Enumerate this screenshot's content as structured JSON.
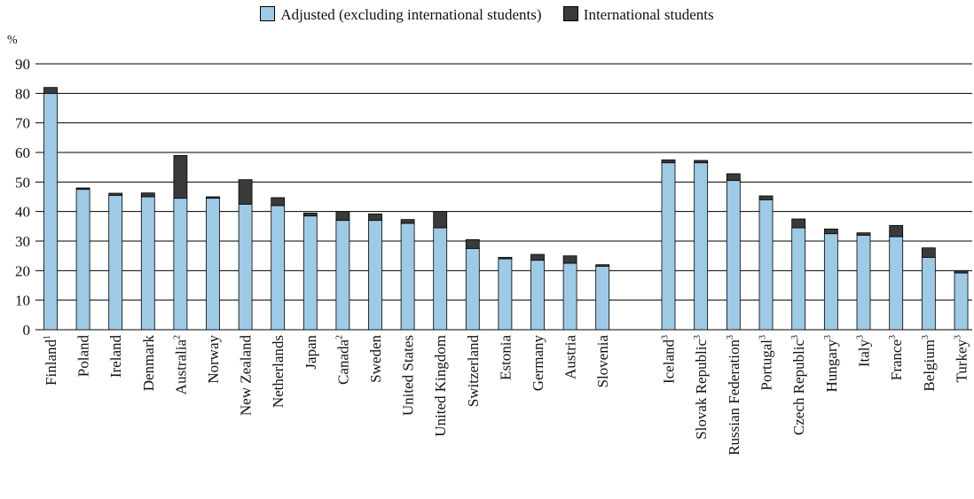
{
  "legend": {
    "adjusted": "Adjusted (excluding international students)",
    "international": "International students"
  },
  "colors": {
    "adjusted": "#9ecae6",
    "international": "#3a3a3a",
    "gridline": "#000000"
  },
  "chart_data": {
    "type": "bar",
    "stacked": true,
    "ylabel": "%",
    "ylim": [
      0,
      90
    ],
    "yticks": [
      0,
      10,
      20,
      30,
      40,
      50,
      60,
      70,
      80,
      90
    ],
    "grid": true,
    "legend_position": "top",
    "categories": [
      {
        "name": "Finland",
        "sup": "1"
      },
      {
        "name": "Poland",
        "sup": ""
      },
      {
        "name": "Ireland",
        "sup": ""
      },
      {
        "name": "Denmark",
        "sup": ""
      },
      {
        "name": "Australia",
        "sup": "2"
      },
      {
        "name": "Norway",
        "sup": ""
      },
      {
        "name": "New Zealand",
        "sup": ""
      },
      {
        "name": "Netherlands",
        "sup": ""
      },
      {
        "name": "Japan",
        "sup": ""
      },
      {
        "name": "Canada",
        "sup": "2"
      },
      {
        "name": "Sweden",
        "sup": ""
      },
      {
        "name": "United States",
        "sup": ""
      },
      {
        "name": "United Kingdom",
        "sup": ""
      },
      {
        "name": "Switzerland",
        "sup": ""
      },
      {
        "name": "Estonia",
        "sup": ""
      },
      {
        "name": "Germany",
        "sup": ""
      },
      {
        "name": "Austria",
        "sup": ""
      },
      {
        "name": "Slovenia",
        "sup": ""
      },
      {
        "name": "Iceland",
        "sup": "3"
      },
      {
        "name": "Slovak Republic",
        "sup": "3"
      },
      {
        "name": "Russian Federation",
        "sup": "3"
      },
      {
        "name": "Portugal",
        "sup": "3"
      },
      {
        "name": "Czech Republic",
        "sup": "3"
      },
      {
        "name": "Hungary",
        "sup": "3"
      },
      {
        "name": "Italy",
        "sup": "3"
      },
      {
        "name": "France",
        "sup": "3"
      },
      {
        "name": "Belgium",
        "sup": "3"
      },
      {
        "name": "Turkey",
        "sup": "3"
      }
    ],
    "series": [
      {
        "name": "Adjusted (excluding international students)",
        "values": [
          80,
          47.5,
          45.5,
          45,
          44.5,
          44.5,
          42.5,
          42,
          38.5,
          37,
          37,
          36,
          34.5,
          27.5,
          24,
          23.5,
          22.5,
          21.5,
          56.5,
          56.5,
          50.5,
          44,
          34.5,
          32.5,
          32,
          31.5,
          24.5,
          19.2
        ]
      },
      {
        "name": "International students",
        "values": [
          2,
          0.5,
          0.7,
          1.3,
          14.5,
          0.5,
          8.3,
          2.7,
          1,
          3,
          2.2,
          1.3,
          5.5,
          3,
          0.5,
          2,
          2.5,
          0.5,
          1,
          0.8,
          2.3,
          1.3,
          3,
          1.6,
          0.8,
          3.8,
          3.2,
          0.8
        ]
      }
    ]
  }
}
